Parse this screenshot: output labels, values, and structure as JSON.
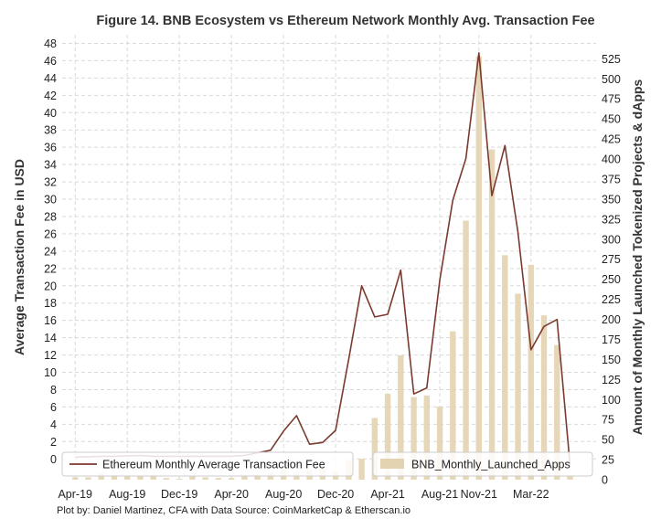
{
  "chart_data": {
    "type": "bar+line",
    "title": "Figure 14. BNB Ecosystem vs Ethereum Network Monthly Avg. Transaction Fee",
    "ylabel_left": "Average Transaction Fee in USD",
    "ylabel_right": "Amount of Monthly Launched Tokenized Projects & dApps",
    "x_ticks": [
      "Apr-19",
      "Aug-19",
      "Dec-19",
      "Apr-20",
      "Aug-20",
      "Dec-20",
      "Apr-21",
      "Aug-21",
      "Nov-21",
      "Mar-22"
    ],
    "x_tick_positions": [
      0,
      4,
      8,
      12,
      16,
      20,
      24,
      28,
      31,
      35
    ],
    "x_range": [
      -1,
      40
    ],
    "ylim_left": [
      -2.4,
      49
    ],
    "yticks_left": [
      0,
      2,
      4,
      6,
      8,
      10,
      12,
      14,
      16,
      18,
      20,
      22,
      24,
      26,
      28,
      30,
      32,
      34,
      36,
      38,
      40,
      42,
      44,
      46,
      48
    ],
    "ylim_right": [
      0,
      555
    ],
    "yticks_right": [
      0,
      25,
      50,
      75,
      100,
      125,
      150,
      175,
      200,
      225,
      250,
      275,
      300,
      325,
      350,
      375,
      400,
      425,
      450,
      475,
      500,
      525
    ],
    "grid": true,
    "legend_line_position": "bottom-left",
    "legend_bar_position": "bottom-right",
    "series": [
      {
        "name": "Ethereum Monthly Average Transaction Fee",
        "kind": "line",
        "axis": "left",
        "color": "#7b3a2f",
        "x": [
          0,
          1,
          2,
          3,
          4,
          5,
          6,
          7,
          8,
          9,
          10,
          11,
          12,
          13,
          14,
          15,
          16,
          17,
          18,
          19,
          20,
          21,
          22,
          23,
          24,
          25,
          26,
          27,
          28,
          29,
          30,
          31,
          32,
          33,
          34,
          35,
          36,
          37,
          38
        ],
        "values": [
          0.2,
          0.25,
          0.3,
          0.3,
          0.35,
          0.4,
          0.3,
          0.3,
          0.3,
          0.3,
          0.3,
          0.3,
          0.3,
          0.4,
          0.7,
          1.0,
          3.2,
          5.0,
          1.7,
          1.9,
          3.3,
          11.5,
          20.0,
          16.4,
          16.7,
          21.8,
          7.5,
          8.2,
          20.7,
          29.9,
          34.7,
          46.9,
          30.4,
          36.2,
          26.2,
          12.6,
          15.3,
          16.1,
          -0.7
        ]
      },
      {
        "name": "BNB_Monthly_Launched_Apps",
        "kind": "bar",
        "axis": "right",
        "color": "#e3d3b0",
        "x": [
          0,
          1,
          2,
          3,
          4,
          5,
          6,
          7,
          8,
          9,
          10,
          11,
          12,
          13,
          14,
          15,
          16,
          17,
          18,
          19,
          20,
          21,
          22,
          23,
          24,
          25,
          26,
          27,
          28,
          29,
          30,
          31,
          32,
          33,
          34,
          35,
          36,
          37,
          38
        ],
        "values": [
          3,
          3,
          9,
          6,
          5,
          5,
          5,
          2,
          1,
          5,
          3,
          2,
          2,
          4,
          6,
          9,
          13,
          10,
          12,
          14,
          10,
          24,
          26,
          77,
          107,
          155,
          103,
          105,
          91,
          185,
          323,
          528,
          412,
          280,
          232,
          268,
          205,
          168,
          5
        ]
      }
    ]
  },
  "caption": "Plot by: Daniel Martinez, CFA with Data Source: CoinMarketCap & Etherscan.io"
}
